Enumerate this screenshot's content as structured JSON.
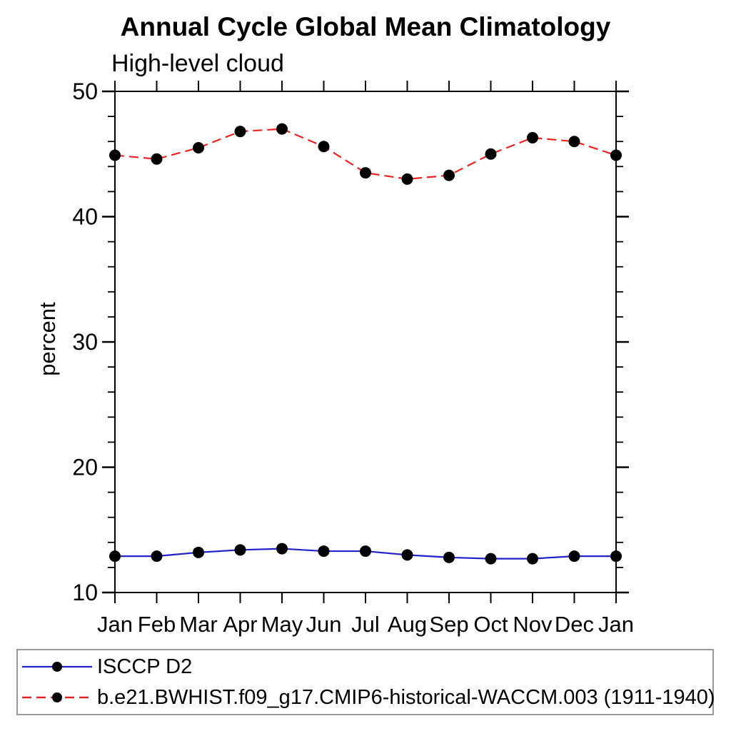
{
  "chart_data": {
    "type": "line",
    "title": "Annual Cycle Global Mean Climatology",
    "subtitle": "High-level cloud",
    "ylabel": "percent",
    "x_categories": [
      "Jan",
      "Feb",
      "Mar",
      "Apr",
      "May",
      "Jun",
      "Jul",
      "Aug",
      "Sep",
      "Oct",
      "Nov",
      "Dec",
      "Jan"
    ],
    "ylim": [
      10,
      50
    ],
    "y_major_ticks": [
      10,
      20,
      30,
      40,
      50
    ],
    "y_minor_step": 2,
    "grid": false,
    "legend_position": "bottom-left-box",
    "axis_color": "#000000",
    "marker_shape": "filled-circle",
    "series": [
      {
        "name": "ISCCP D2",
        "color": "#2222cc",
        "line_style": "solid",
        "marker_color": "#000000",
        "values": [
          12.9,
          12.9,
          13.2,
          13.4,
          13.5,
          13.3,
          13.3,
          13.0,
          12.8,
          12.7,
          12.7,
          12.9,
          12.9
        ]
      },
      {
        "name": "b.e21.BWHIST.f09_g17.CMIP6-historical-WACCM.003 (1911-1940)",
        "color": "#ee2222",
        "line_style": "dashed",
        "marker_color": "#000000",
        "values": [
          44.9,
          44.6,
          45.5,
          46.8,
          47.0,
          45.6,
          43.5,
          43.0,
          43.3,
          45.0,
          46.3,
          46.0,
          44.9
        ]
      }
    ]
  }
}
